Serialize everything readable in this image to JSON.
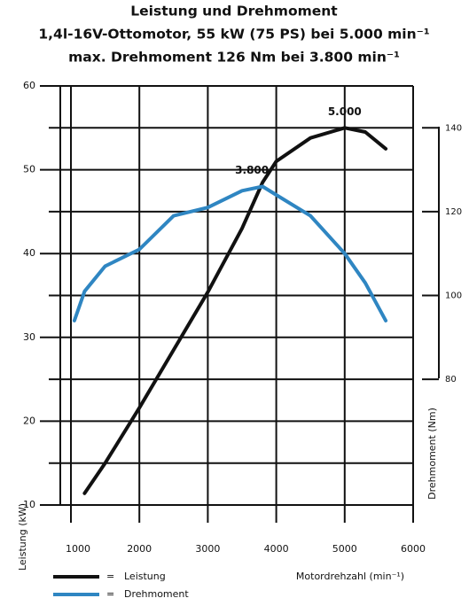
{
  "chart_data": {
    "type": "line",
    "title": "Leistung und Drehmoment",
    "subtitle": [
      "1,4l-16V-Ottomotor, 55 kW (75 PS) bei 5.000 min⁻¹",
      "max. Drehmoment 126 Nm bei 3.800 min⁻¹"
    ],
    "xlabel": "Motordrehzahl (min⁻¹)",
    "ylabel": "Leistung (kW)",
    "y2label": "Drehmoment (Nm)",
    "xlim": [
      1000,
      6000
    ],
    "xticks": [
      1000,
      2000,
      3000,
      4000,
      5000,
      6000
    ],
    "ylim": [
      10,
      60
    ],
    "yticks": [
      10,
      20,
      30,
      40,
      50,
      60
    ],
    "minor_yticks": [
      15,
      25,
      35,
      45,
      55
    ],
    "y2lim": [
      50,
      150
    ],
    "y2ticks": [
      80,
      100,
      120,
      140
    ],
    "grid": true,
    "series": [
      {
        "name": "Leistung",
        "color": "#111111",
        "x": [
          1200,
          1500,
          2000,
          2500,
          3000,
          3500,
          3800,
          4000,
          4500,
          5000,
          5300,
          5600
        ],
        "values": [
          11.4,
          15,
          21.6,
          28.5,
          35.4,
          43,
          48.5,
          51,
          53.8,
          55,
          54.5,
          52.5
        ]
      },
      {
        "name": "Drehmoment",
        "color": "#2f86c2",
        "axis": "y2",
        "x": [
          1050,
          1200,
          1500,
          2000,
          2500,
          3000,
          3500,
          3800,
          4000,
          4500,
          5000,
          5300,
          5600
        ],
        "values": [
          94,
          101,
          107,
          111,
          119,
          121,
          125,
          126,
          124,
          119,
          110,
          103,
          94
        ]
      }
    ],
    "annotations": [
      {
        "text": "5.000",
        "series": 0,
        "point": 9
      },
      {
        "text": "3.800",
        "series": 1,
        "point": 7
      }
    ]
  }
}
